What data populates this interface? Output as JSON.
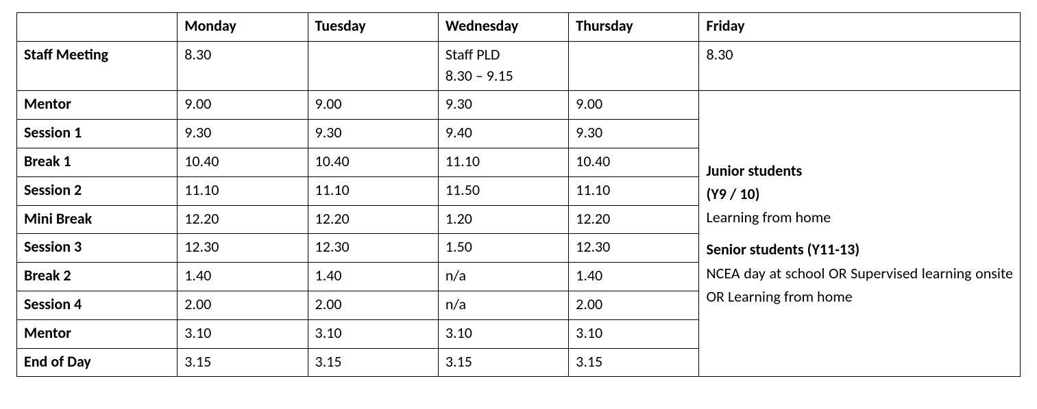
{
  "type": "table",
  "font_family": "Calibri",
  "font_size_pt": 16,
  "colors": {
    "border": "#000000",
    "text": "#000000",
    "background": "#ffffff"
  },
  "column_widths_pct": [
    16,
    13,
    13,
    13,
    13,
    32
  ],
  "columns": [
    "",
    "Monday",
    "Tuesday",
    "Wednesday",
    "Thursday",
    "Friday"
  ],
  "row_labels": [
    "Staff Meeting",
    "Mentor",
    "Session 1",
    "Break 1",
    "Session 2",
    "Mini Break",
    "Session 3",
    "Break 2",
    "Session 4",
    "Mentor",
    "End of Day"
  ],
  "cells": {
    "staff_meeting": {
      "mon": "8.30",
      "tue": "",
      "wed": "Staff PLD\n8.30 – 9.15",
      "thu": "",
      "fri": "8.30"
    },
    "mentor1": {
      "mon": "9.00",
      "tue": "9.00",
      "wed": "9.30",
      "thu": "9.00"
    },
    "session1": {
      "mon": "9.30",
      "tue": "9.30",
      "wed": "9.40",
      "thu": "9.30"
    },
    "break1": {
      "mon": "10.40",
      "tue": "10.40",
      "wed": "11.10",
      "thu": "10.40"
    },
    "session2": {
      "mon": "11.10",
      "tue": "11.10",
      "wed": "11.50",
      "thu": "11.10"
    },
    "mini_break": {
      "mon": "12.20",
      "tue": "12.20",
      "wed": "1.20",
      "thu": "12.20"
    },
    "session3": {
      "mon": "12.30",
      "tue": "12.30",
      "wed": "1.50",
      "thu": "12.30"
    },
    "break2": {
      "mon": "1.40",
      "tue": "1.40",
      "wed": "n/a",
      "thu": "1.40"
    },
    "session4": {
      "mon": "2.00",
      "tue": "2.00",
      "wed": "n/a",
      "thu": "2.00"
    },
    "mentor2": {
      "mon": "3.10",
      "tue": "3.10",
      "wed": "3.10",
      "thu": "3.10"
    },
    "end_of_day": {
      "mon": "3.15",
      "tue": "3.15",
      "wed": "3.15",
      "thu": "3.15"
    }
  },
  "friday_block": {
    "juniors_heading_line1": "Junior students",
    "juniors_heading_line2": "(Y9 / 10)",
    "juniors_body": "Learning from home",
    "seniors_heading": "Senior students (Y11-13)",
    "seniors_body": "NCEA day at school OR Supervised learning onsite OR Learning from home"
  }
}
